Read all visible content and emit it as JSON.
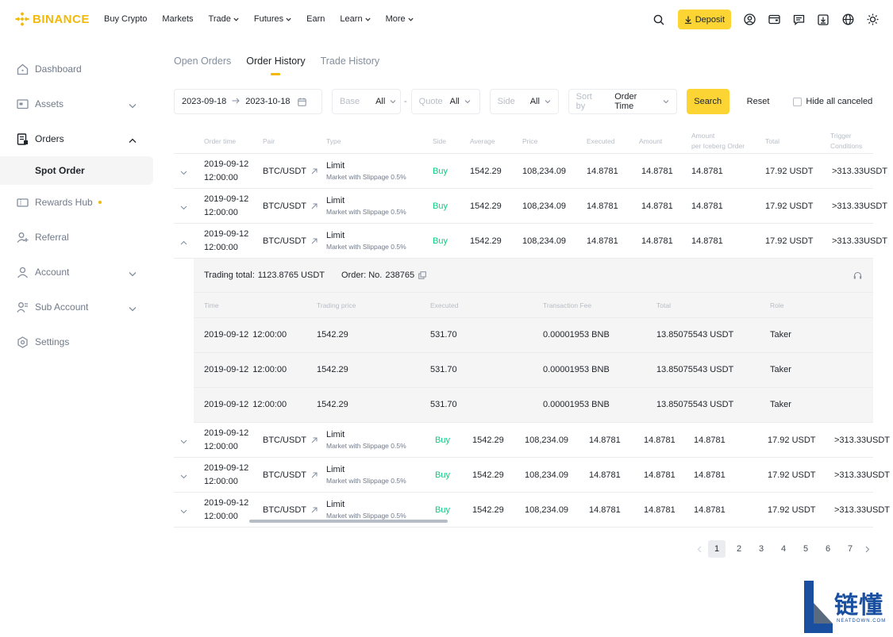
{
  "brand": {
    "name": "BINANCE",
    "color": "#f0b90b"
  },
  "nav": {
    "links": [
      {
        "label": "Buy Crypto",
        "dropdown": false
      },
      {
        "label": "Markets",
        "dropdown": false
      },
      {
        "label": "Trade",
        "dropdown": true
      },
      {
        "label": "Futures",
        "dropdown": true
      },
      {
        "label": "Earn",
        "dropdown": false
      },
      {
        "label": "Learn",
        "dropdown": true
      },
      {
        "label": "More",
        "dropdown": true
      }
    ],
    "deposit_label": "Deposit",
    "right_icons": [
      "search-icon",
      "user-icon",
      "wallet-icon",
      "message-icon",
      "download-icon",
      "globe-icon",
      "theme-sun-icon"
    ]
  },
  "sidebar": {
    "items": [
      {
        "label": "Dashboard",
        "icon": "home-icon",
        "active": false,
        "chevron": ""
      },
      {
        "label": "Assets",
        "icon": "assets-icon",
        "active": false,
        "chevron": "down"
      },
      {
        "label": "Orders",
        "icon": "orders-icon",
        "active": true,
        "chevron": "up"
      },
      {
        "label": "Rewards Hub",
        "icon": "rewards-icon",
        "active": false,
        "chevron": "",
        "dot": true
      },
      {
        "label": "Referral",
        "icon": "referral-icon",
        "active": false,
        "chevron": ""
      },
      {
        "label": "Account",
        "icon": "account-icon",
        "active": false,
        "chevron": "down"
      },
      {
        "label": "Sub Account",
        "icon": "sub-account-icon",
        "active": false,
        "chevron": "down"
      },
      {
        "label": "Settings",
        "icon": "settings-icon",
        "active": false,
        "chevron": ""
      }
    ],
    "sub_item": "Spot Order"
  },
  "tabs": [
    {
      "label": "Open Orders",
      "active": false
    },
    {
      "label": "Order History",
      "active": true
    },
    {
      "label": "Trade History",
      "active": false
    }
  ],
  "filters": {
    "date_from": "2023-09-18",
    "date_to": "2023-10-18",
    "base_label": "Base",
    "base_value": "All",
    "quote_label": "Quote",
    "quote_value": "All",
    "side_label": "Side",
    "side_value": "All",
    "sort_label": "Sort by",
    "sort_value": "Order Time",
    "search_label": "Search",
    "reset_label": "Reset",
    "hide_canceled_label": "Hide all canceled"
  },
  "table": {
    "headers": [
      "Order time",
      "Pair",
      "Type",
      "Side",
      "Average",
      "Price",
      "Executed",
      "Amount",
      "Amount\nper Iceberg Order",
      "Total",
      "Trigger\nConditions"
    ],
    "rows": [
      {
        "date": "2019-09-12",
        "time": "12:00:00",
        "pair": "BTC/USDT",
        "type": "Limit",
        "type_sub": "Market with Slippage 0.5%",
        "side": "Buy",
        "average": "1542.29",
        "price": "108,234.09",
        "executed": "14.8781",
        "amount": "14.8781",
        "iceberg": "14.8781",
        "total": "17.92 USDT",
        "trigger": ">313.33USDT",
        "expanded": false
      },
      {
        "date": "2019-09-12",
        "time": "12:00:00",
        "pair": "BTC/USDT",
        "type": "Limit",
        "type_sub": "Market with Slippage 0.5%",
        "side": "Buy",
        "average": "1542.29",
        "price": "108,234.09",
        "executed": "14.8781",
        "amount": "14.8781",
        "iceberg": "14.8781",
        "total": "17.92 USDT",
        "trigger": ">313.33USDT",
        "expanded": false
      },
      {
        "date": "2019-09-12",
        "time": "12:00:00",
        "pair": "BTC/USDT",
        "type": "Limit",
        "type_sub": "Market with Slippage 0.5%",
        "side": "Buy",
        "average": "1542.29",
        "price": "108,234.09",
        "executed": "14.8781",
        "amount": "14.8781",
        "iceberg": "14.8781",
        "total": "17.92 USDT",
        "trigger": ">313.33USDT",
        "expanded": true
      },
      {
        "date": "2019-09-12",
        "time": "12:00:00",
        "pair": "BTC/USDT",
        "type": "Limit",
        "type_sub": "Market with Slippage 0.5%",
        "side": "Buy",
        "average": "1542.29",
        "price": "108,234.09",
        "executed": "14.8781",
        "amount": "14.8781",
        "iceberg": "14.8781",
        "total": "17.92 USDT",
        "trigger": ">313.33USDT",
        "expanded": false
      },
      {
        "date": "2019-09-12",
        "time": "12:00:00",
        "pair": "BTC/USDT",
        "type": "Limit",
        "type_sub": "Market with Slippage 0.5%",
        "side": "Buy",
        "average": "1542.29",
        "price": "108,234.09",
        "executed": "14.8781",
        "amount": "14.8781",
        "iceberg": "14.8781",
        "total": "17.92 USDT",
        "trigger": ">313.33USDT",
        "expanded": false
      },
      {
        "date": "2019-09-12",
        "time": "12:00:00",
        "pair": "BTC/USDT",
        "type": "Limit",
        "type_sub": "Market with Slippage 0.5%",
        "side": "Buy",
        "average": "1542.29",
        "price": "108,234.09",
        "executed": "14.8781",
        "amount": "14.8781",
        "iceberg": "14.8781",
        "total": "17.92 USDT",
        "trigger": ">313.33USDT",
        "expanded": false
      }
    ],
    "detail": {
      "trading_total_label": "Trading total:",
      "trading_total_value": "1123.8765 USDT",
      "order_label": "Order: No.",
      "order_value": "238765",
      "headers": [
        "Time",
        "Trading price",
        "Executed",
        "Transaction Fee",
        "Total",
        "Role"
      ],
      "rows": [
        {
          "date": "2019-09-12",
          "time": "12:00:00",
          "price": "1542.29",
          "executed": "531.70",
          "fee": "0.00001953 BNB",
          "total": "13.85075543 USDT",
          "role": "Taker"
        },
        {
          "date": "2019-09-12",
          "time": "12:00:00",
          "price": "1542.29",
          "executed": "531.70",
          "fee": "0.00001953 BNB",
          "total": "13.85075543 USDT",
          "role": "Taker"
        },
        {
          "date": "2019-09-12",
          "time": "12:00:00",
          "price": "1542.29",
          "executed": "531.70",
          "fee": "0.00001953 BNB",
          "total": "13.85075543 USDT",
          "role": "Taker"
        }
      ]
    }
  },
  "pagination": {
    "pages": [
      "1",
      "2",
      "3",
      "4",
      "5",
      "6",
      "7"
    ],
    "current": "1"
  },
  "watermark": {
    "text": "链懂",
    "sub": "NEATDOWN.COM"
  },
  "colors": {
    "accent": "#fcd535",
    "buy": "#0ecb81",
    "muted": "#707a8a"
  }
}
